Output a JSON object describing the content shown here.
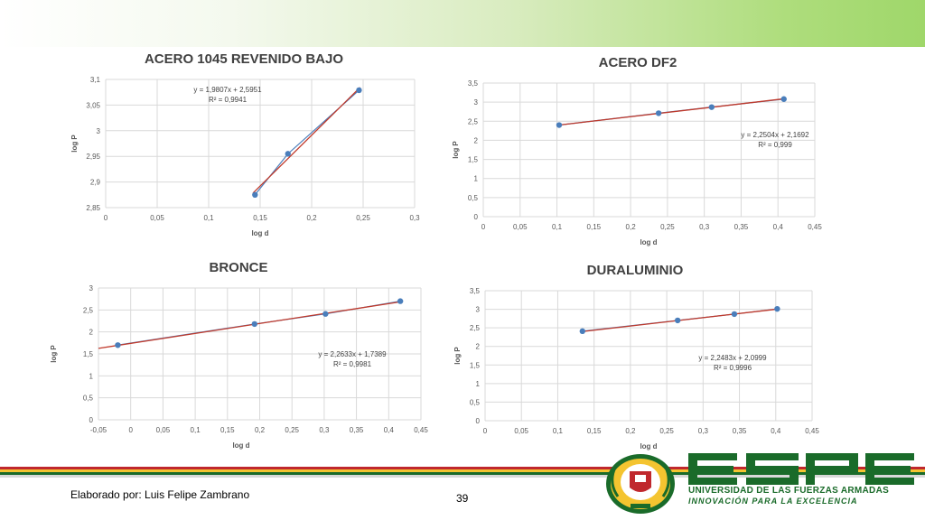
{
  "footer": {
    "author": "Elaborado por: Luis Felipe Zambrano",
    "page_number": "39"
  },
  "logo": {
    "wordmark": "ESPE",
    "subtitle": "UNIVERSIDAD DE LAS FUERZAS ARMADAS",
    "tagline": "INNOVACIÓN PARA LA EXCELENCIA",
    "seal_text": "ESPE ECUADOR"
  },
  "colors": {
    "series_marker": "#4a7ebb",
    "trendline": "#c0392b",
    "grid": "#d9d9d9",
    "brand_green": "#1a6b2a",
    "brand_red": "#c0282d",
    "brand_yellow": "#f4c430"
  },
  "chart_data": [
    {
      "type": "scatter",
      "title": "ACERO 1045 REVENIDO BAJO",
      "xlabel": "log d",
      "ylabel": "log P",
      "xlim": [
        0,
        0.3
      ],
      "ylim": [
        2.85,
        3.1
      ],
      "xticks": [
        0,
        0.05,
        0.1,
        0.15,
        0.2,
        0.25,
        0.3
      ],
      "yticks": [
        2.85,
        2.9,
        2.95,
        3,
        3.05,
        3.1
      ],
      "xtick_labels": [
        "0",
        "0,05",
        "0,1",
        "0,15",
        "0,2",
        "0,25",
        "0,3"
      ],
      "ytick_labels": [
        "2,85",
        "2,9",
        "2,95",
        "3",
        "3,05",
        "3,1"
      ],
      "points": [
        [
          0.145,
          2.875
        ],
        [
          0.177,
          2.955
        ],
        [
          0.246,
          3.079
        ]
      ],
      "trendline": {
        "slope": 1.9807,
        "intercept": 2.5951,
        "x_range": [
          0.143,
          0.247
        ]
      },
      "equation": "y = 1,9807x + 2,5951",
      "r2": "R² = 0,9941",
      "grid": true
    },
    {
      "type": "scatter",
      "title": "ACERO DF2",
      "xlabel": "log d",
      "ylabel": "log P",
      "xlim": [
        0,
        0.45
      ],
      "ylim": [
        0,
        3.5
      ],
      "xticks": [
        0,
        0.05,
        0.1,
        0.15,
        0.2,
        0.25,
        0.3,
        0.35,
        0.4,
        0.45
      ],
      "yticks": [
        0,
        0.5,
        1,
        1.5,
        2,
        2.5,
        3,
        3.5
      ],
      "xtick_labels": [
        "0",
        "0,05",
        "0,1",
        "0,15",
        "0,2",
        "0,25",
        "0,3",
        "0,35",
        "0,4",
        "0,45"
      ],
      "ytick_labels": [
        "0",
        "0,5",
        "1",
        "1,5",
        "2",
        "2,5",
        "3",
        "3,5"
      ],
      "points": [
        [
          0.103,
          2.4
        ],
        [
          0.238,
          2.71
        ],
        [
          0.31,
          2.87
        ],
        [
          0.408,
          3.08
        ]
      ],
      "trendline": {
        "slope": 2.2504,
        "intercept": 2.1692,
        "x_range": [
          0.103,
          0.408
        ]
      },
      "equation": "y = 2,2504x + 2,1692",
      "r2": "R² = 0,999",
      "grid": true
    },
    {
      "type": "scatter",
      "title": "BRONCE",
      "xlabel": "log d",
      "ylabel": "log P",
      "xlim": [
        -0.05,
        0.45
      ],
      "ylim": [
        0,
        3
      ],
      "xticks": [
        -0.05,
        0,
        0.05,
        0.1,
        0.15,
        0.2,
        0.25,
        0.3,
        0.35,
        0.4,
        0.45
      ],
      "yticks": [
        0,
        0.5,
        1,
        1.5,
        2,
        2.5,
        3
      ],
      "xtick_labels": [
        "-0,05",
        "0",
        "0,05",
        "0,1",
        "0,15",
        "0,2",
        "0,25",
        "0,3",
        "0,35",
        "0,4",
        "0,45"
      ],
      "ytick_labels": [
        "0",
        "0,5",
        "1",
        "1,5",
        "2",
        "2,5",
        "3"
      ],
      "points": [
        [
          -0.02,
          1.7
        ],
        [
          0.192,
          2.18
        ],
        [
          0.302,
          2.41
        ],
        [
          0.418,
          2.7
        ]
      ],
      "trendline": {
        "slope": 2.2633,
        "intercept": 1.7389,
        "x_range": [
          -0.05,
          0.42
        ]
      },
      "equation": "y = 2,2633x + 1,7389",
      "r2": "R² = 0,9981",
      "grid": true
    },
    {
      "type": "scatter",
      "title": "DURALUMINIO",
      "xlabel": "log d",
      "ylabel": "log P",
      "xlim": [
        0,
        0.45
      ],
      "ylim": [
        0,
        3.5
      ],
      "xticks": [
        0,
        0.05,
        0.1,
        0.15,
        0.2,
        0.25,
        0.3,
        0.35,
        0.4,
        0.45
      ],
      "yticks": [
        0,
        0.5,
        1,
        1.5,
        2,
        2.5,
        3,
        3.5
      ],
      "xtick_labels": [
        "0",
        "0,05",
        "0,1",
        "0,15",
        "0,2",
        "0,25",
        "0,3",
        "0,35",
        "0,4",
        "0,45"
      ],
      "ytick_labels": [
        "0",
        "0,5",
        "1",
        "1,5",
        "2",
        "2,5",
        "3",
        "3,5"
      ],
      "points": [
        [
          0.134,
          2.41
        ],
        [
          0.265,
          2.7
        ],
        [
          0.343,
          2.87
        ],
        [
          0.402,
          3.01
        ]
      ],
      "trendline": {
        "slope": 2.2483,
        "intercept": 2.0999,
        "x_range": [
          0.134,
          0.402
        ]
      },
      "equation": "y = 2,2483x + 2,0999",
      "r2": "R² = 0,9996",
      "grid": true
    }
  ]
}
